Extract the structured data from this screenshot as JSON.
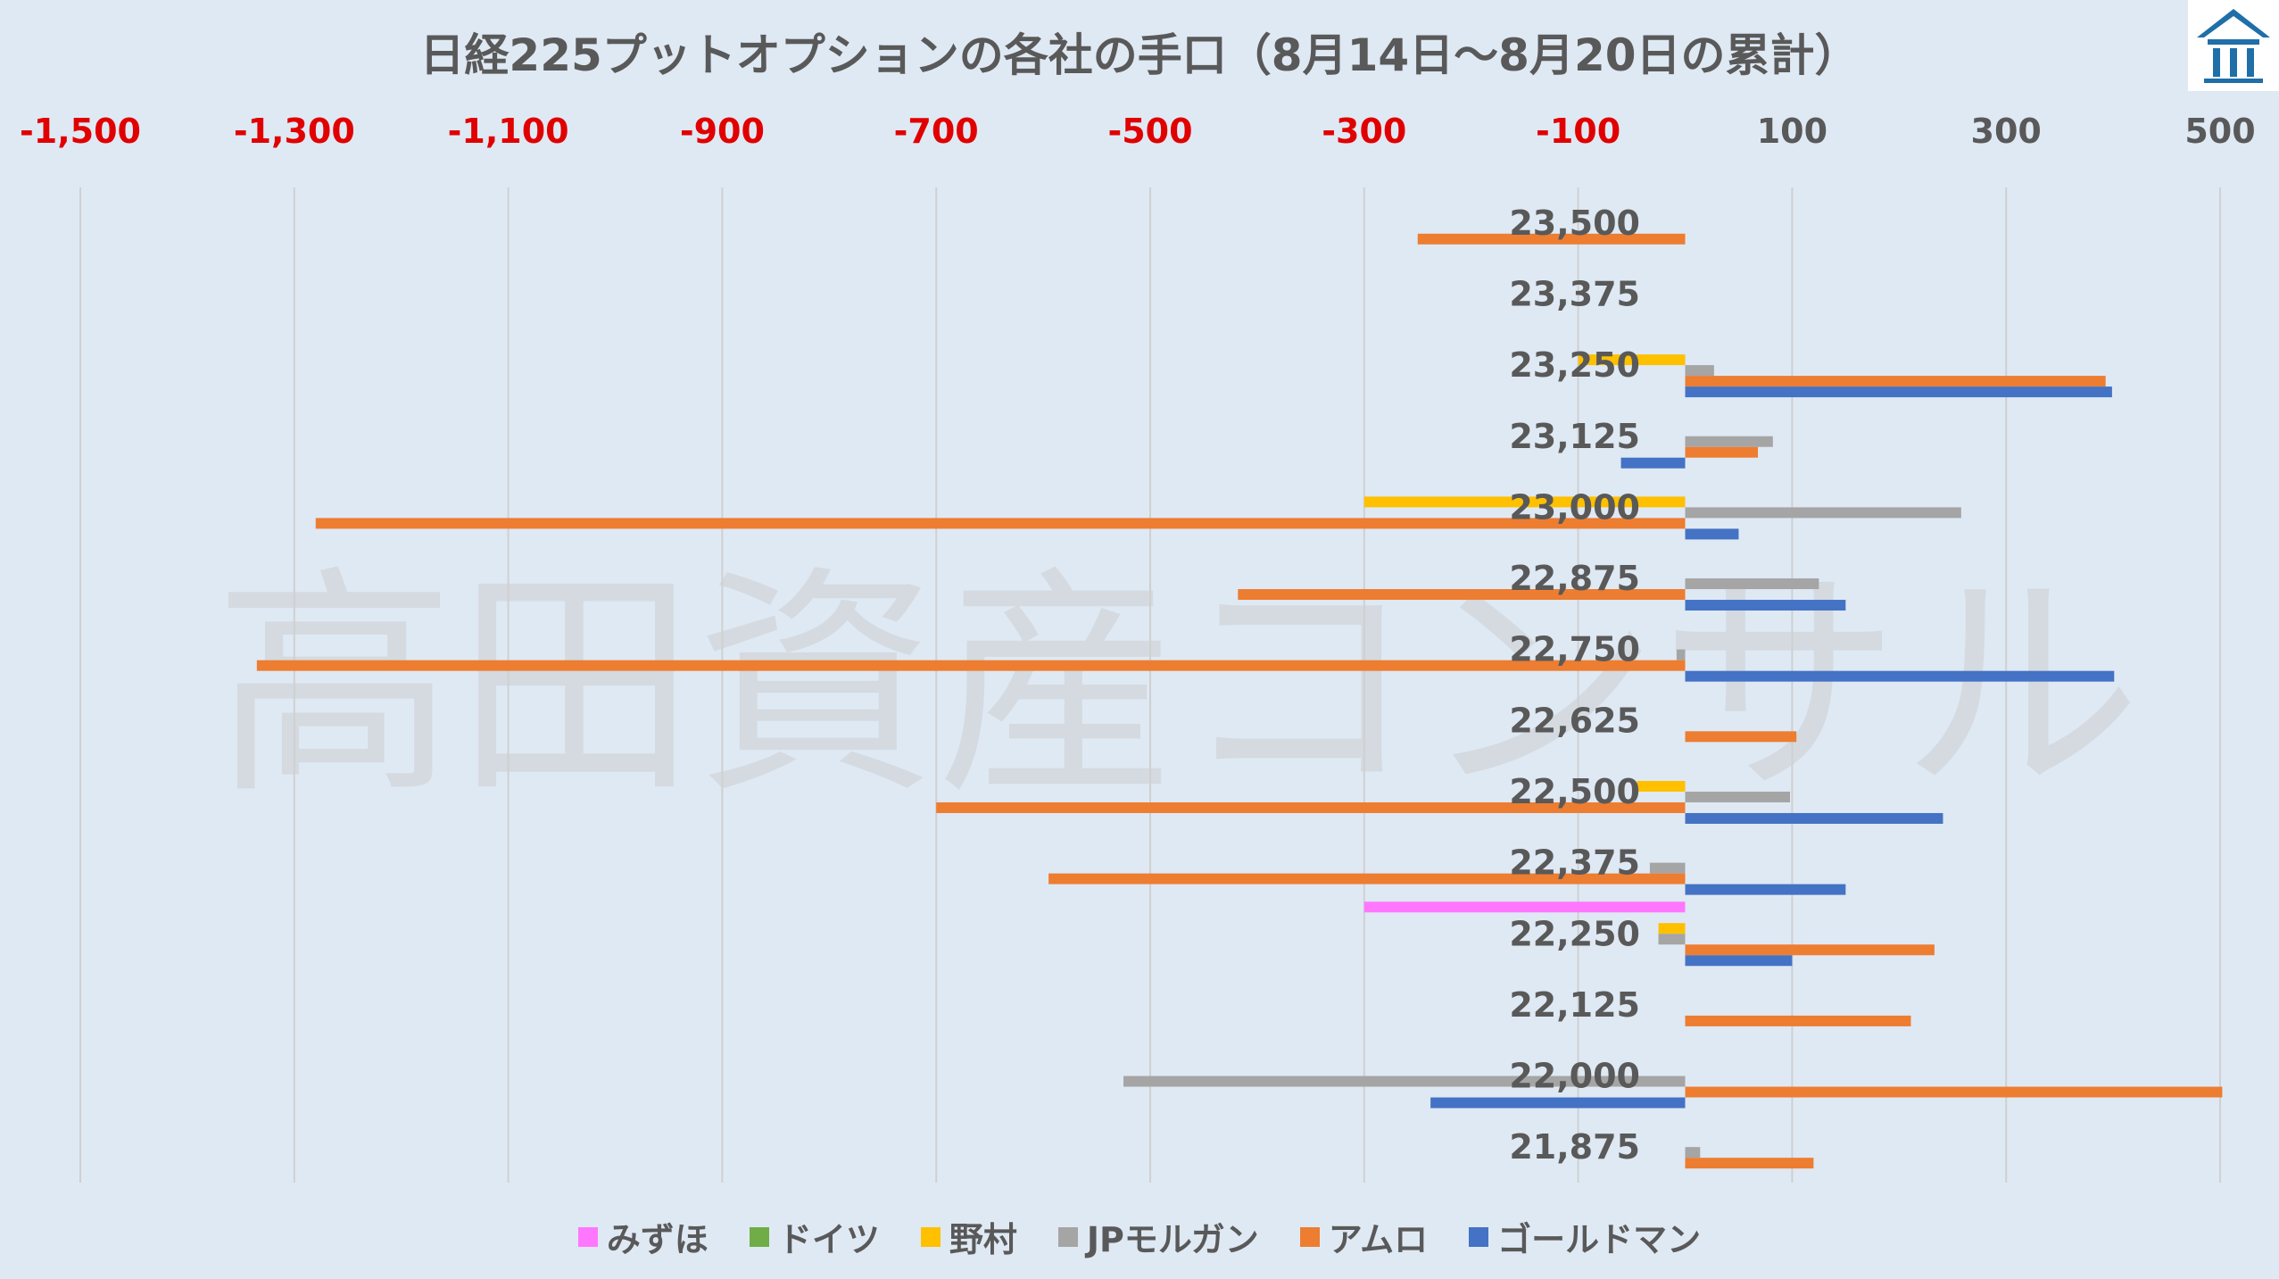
{
  "title": "日経225プットオプションの各社の手口（8月14日～8月20日の累計）",
  "watermark": "高田資産コンサル",
  "logo_icon": "house-building-logo-icon",
  "colors": {
    "background": "#dfe9f4",
    "gridline": "#d0d0d0",
    "negative_tick": "#e00000",
    "positive_tick": "#595959"
  },
  "chart_data": {
    "type": "bar",
    "orientation": "horizontal",
    "grid": true,
    "legend_position": "bottom",
    "x_ticks": [
      -1500,
      -1300,
      -1100,
      -900,
      -700,
      -500,
      -300,
      -100,
      100,
      300,
      500
    ],
    "x_tick_labels": [
      "-1,500",
      "-1,300",
      "-1,100",
      "-900",
      "-700",
      "-500",
      "-300",
      "-100",
      "100",
      "300",
      "500"
    ],
    "xlim": [
      -1500,
      500
    ],
    "categories": [
      "23,500",
      "23,375",
      "23,250",
      "23,125",
      "23,000",
      "22,875",
      "22,750",
      "22,625",
      "22,500",
      "22,375",
      "22,250",
      "22,125",
      "22,000",
      "21,875"
    ],
    "series": [
      {
        "name": "みずほ",
        "color": "#ff77ff",
        "values": [
          0,
          0,
          0,
          0,
          0,
          0,
          0,
          0,
          0,
          0,
          -300,
          0,
          0,
          0
        ]
      },
      {
        "name": "ドイツ",
        "color": "#70ad47",
        "values": [
          0,
          0,
          0,
          0,
          0,
          0,
          0,
          0,
          0,
          0,
          0,
          0,
          0,
          0
        ]
      },
      {
        "name": "野村",
        "color": "#ffc000",
        "values": [
          0,
          0,
          -100,
          0,
          -300,
          0,
          0,
          0,
          -45,
          0,
          -25,
          0,
          0,
          0
        ]
      },
      {
        "name": "JPモルガン",
        "color": "#a5a5a5",
        "values": [
          0,
          0,
          27,
          82,
          258,
          125,
          -8,
          0,
          98,
          -33,
          -25,
          0,
          -525,
          14
        ]
      },
      {
        "name": "アムロ",
        "color": "#ed7d31",
        "values": [
          -250,
          0,
          393,
          68,
          -1280,
          -418,
          -1335,
          104,
          -700,
          -595,
          233,
          211,
          502,
          120
        ]
      },
      {
        "name": "ゴールドマン",
        "color": "#4472c4",
        "values": [
          0,
          0,
          399,
          -60,
          50,
          150,
          401,
          0,
          241,
          150,
          100,
          0,
          -238,
          0
        ]
      }
    ]
  }
}
